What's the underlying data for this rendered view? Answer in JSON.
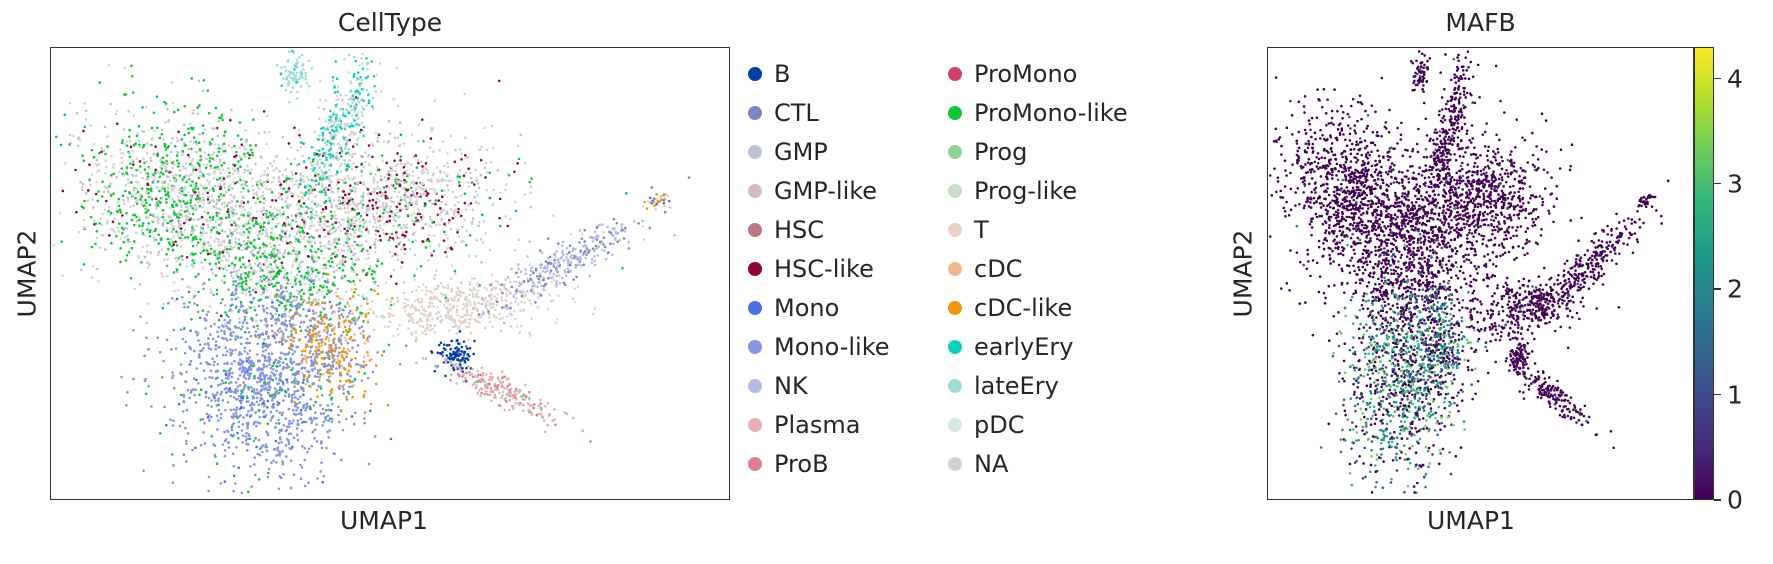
{
  "chart_data": [
    {
      "type": "scatter",
      "title": "CellType",
      "xlabel": "UMAP1",
      "ylabel": "UMAP2",
      "grid": false,
      "legend_placement": "right",
      "legend": [
        {
          "name": "B",
          "color": "#023fa5"
        },
        {
          "name": "CTL",
          "color": "#7d87b9"
        },
        {
          "name": "GMP",
          "color": "#bec1d4"
        },
        {
          "name": "GMP-like",
          "color": "#d6bcc0"
        },
        {
          "name": "HSC",
          "color": "#bb7784"
        },
        {
          "name": "HSC-like",
          "color": "#8e063b"
        },
        {
          "name": "Mono",
          "color": "#4a6fe3"
        },
        {
          "name": "Mono-like",
          "color": "#8595e1"
        },
        {
          "name": "NK",
          "color": "#b5bbe3"
        },
        {
          "name": "Plasma",
          "color": "#e6afb9"
        },
        {
          "name": "ProB",
          "color": "#e07b91"
        },
        {
          "name": "ProMono",
          "color": "#d33f6a"
        },
        {
          "name": "ProMono-like",
          "color": "#11c638"
        },
        {
          "name": "Prog",
          "color": "#8dd593"
        },
        {
          "name": "Prog-like",
          "color": "#c6dec7"
        },
        {
          "name": "T",
          "color": "#ead3c6"
        },
        {
          "name": "cDC",
          "color": "#f0b98d"
        },
        {
          "name": "cDC-like",
          "color": "#ef9708"
        },
        {
          "name": "earlyEry",
          "color": "#0fcfc0"
        },
        {
          "name": "lateEry",
          "color": "#9cded6"
        },
        {
          "name": "pDC",
          "color": "#d5eae7"
        },
        {
          "name": "NA",
          "color": "#d3d3d3"
        }
      ]
    },
    {
      "type": "scatter",
      "title": "MAFB",
      "xlabel": "UMAP1",
      "ylabel": "UMAP2",
      "grid": false,
      "colormap": "viridis",
      "colorbar": {
        "min": 0,
        "max": 4.3,
        "ticks": [
          "0",
          "1",
          "2",
          "3",
          "4"
        ]
      }
    }
  ]
}
